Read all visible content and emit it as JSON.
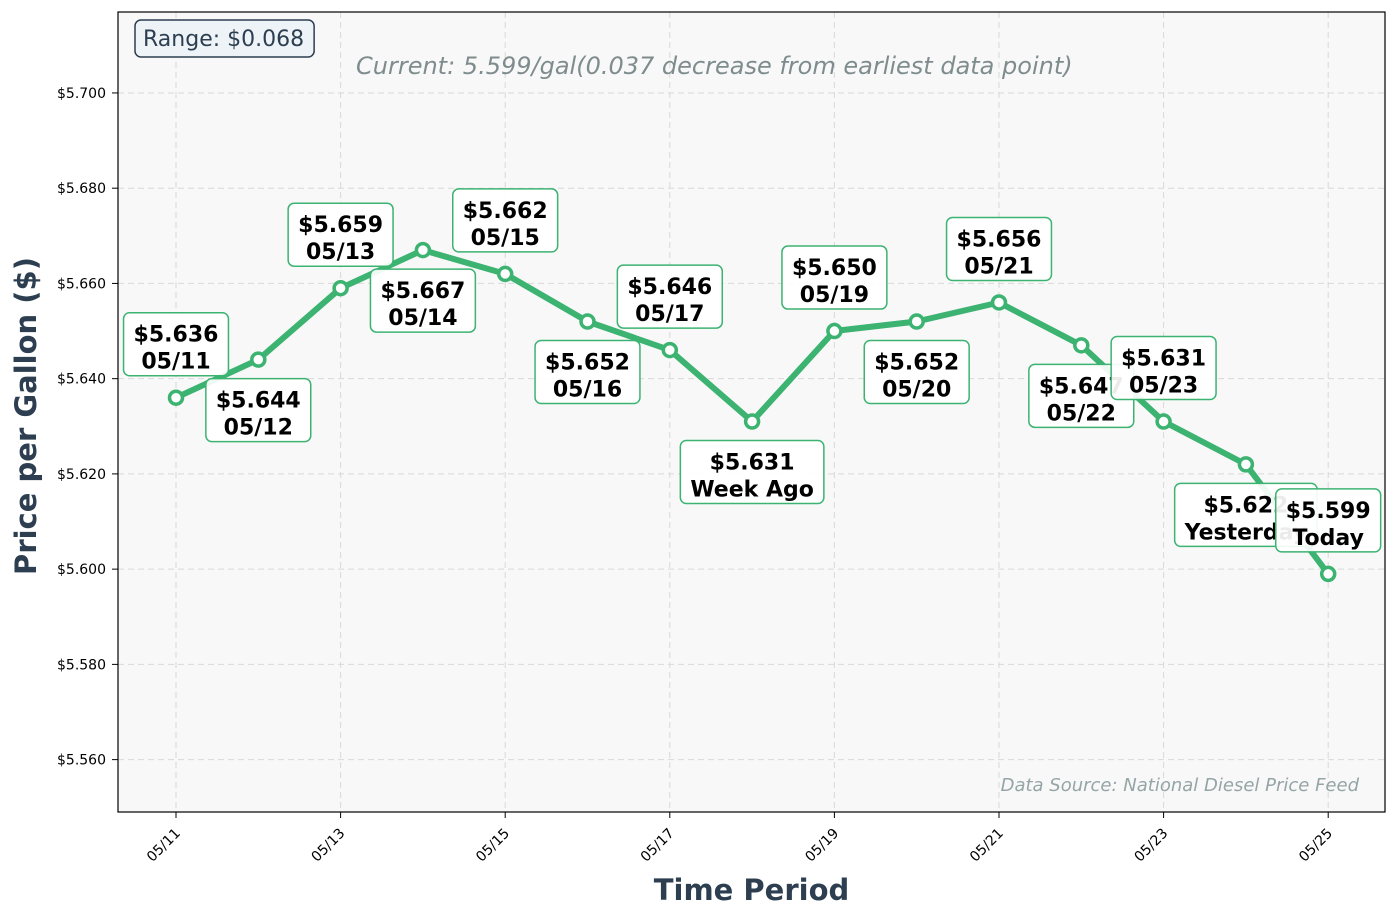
{
  "chart_data": {
    "type": "line",
    "subtitle": "Current: 5.599/gal(0.037 decrease from earliest data point)",
    "xlabel": "Time Period",
    "ylabel": "Price per Gallon ($)",
    "ylim": [
      5.549,
      5.717
    ],
    "yticks": [
      5.56,
      5.58,
      5.6,
      5.62,
      5.64,
      5.66,
      5.68,
      5.7
    ],
    "ytick_labels": [
      "$5.560",
      "$5.580",
      "$5.600",
      "$5.620",
      "$5.640",
      "$5.660",
      "$5.680",
      "$5.700"
    ],
    "x": [
      "05/11",
      "05/12",
      "05/13",
      "05/14",
      "05/15",
      "05/16",
      "05/17",
      "05/18",
      "05/19",
      "05/20",
      "05/21",
      "05/22",
      "05/23",
      "05/24",
      "05/25"
    ],
    "xticks": [
      "05/11",
      "05/13",
      "05/15",
      "05/17",
      "05/19",
      "05/21",
      "05/23",
      "05/25"
    ],
    "series": [
      {
        "values": [
          5.636,
          5.644,
          5.659,
          5.667,
          5.662,
          5.652,
          5.646,
          5.631,
          5.65,
          5.652,
          5.656,
          5.647,
          5.631,
          5.622,
          5.599
        ]
      }
    ],
    "annotations": [
      {
        "price": "$5.636",
        "label": "05/11",
        "point": 0,
        "side": "above"
      },
      {
        "price": "$5.644",
        "label": "05/12",
        "point": 1,
        "side": "below"
      },
      {
        "price": "$5.659",
        "label": "05/13",
        "point": 2,
        "side": "above"
      },
      {
        "price": "$5.667",
        "label": "05/14",
        "point": 3,
        "side": "below"
      },
      {
        "price": "$5.662",
        "label": "05/15",
        "point": 4,
        "side": "above"
      },
      {
        "price": "$5.652",
        "label": "05/16",
        "point": 5,
        "side": "below"
      },
      {
        "price": "$5.646",
        "label": "05/17",
        "point": 6,
        "side": "above"
      },
      {
        "price": "$5.631",
        "label": "Week Ago",
        "point": 7,
        "side": "below"
      },
      {
        "price": "$5.650",
        "label": "05/19",
        "point": 8,
        "side": "above"
      },
      {
        "price": "$5.652",
        "label": "05/20",
        "point": 9,
        "side": "below"
      },
      {
        "price": "$5.656",
        "label": "05/21",
        "point": 10,
        "side": "above"
      },
      {
        "price": "$5.647",
        "label": "05/22",
        "point": 11,
        "side": "below"
      },
      {
        "price": "$5.631",
        "label": "05/23",
        "point": 12,
        "side": "above"
      },
      {
        "price": "$5.622",
        "label": "Yesterday",
        "point": 13,
        "side": "below"
      },
      {
        "price": "$5.599",
        "label": "Today",
        "point": 14,
        "side": "above"
      }
    ],
    "range_label": "Range: $0.068",
    "source_note": "Data Source: National Diesel Price Feed",
    "grid": true,
    "colors": {
      "line": "#3cb371",
      "marker_fill": "#ffffff",
      "plot_background": "#f8f8f8",
      "axis_title": "#2c3e50",
      "subtitle": "#7f8c8d",
      "source": "#95a5a6",
      "range_box_fill": "#eef3f7"
    }
  }
}
